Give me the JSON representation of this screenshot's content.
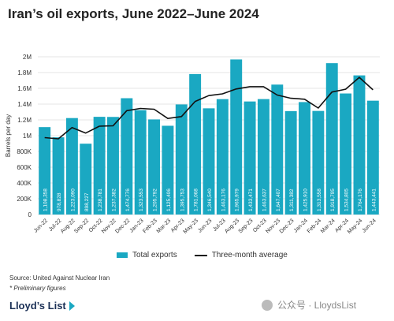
{
  "header": {
    "title": "Iran’s oil exports, June 2022–June 2024"
  },
  "legend": {
    "bars_label": "Total exports",
    "line_label": "Three-month average"
  },
  "footer": {
    "source": "Source: United Against Nuclear Iran",
    "footnote": "* Preliminary figures",
    "brand": "Lloyd’s List",
    "watermark": "公众号 · LloydsList"
  },
  "colors": {
    "bar": "#1aa8c2",
    "line": "#111111",
    "grid": "#dddddd",
    "bar_label": "#ffffff"
  },
  "chart_data": {
    "type": "bar",
    "title": "Iran’s oil exports, June 2022–June 2024",
    "xlabel": "",
    "ylabel": "Barrels per day",
    "ylim": [
      0,
      2000000
    ],
    "yticks": [
      0,
      200000,
      400000,
      600000,
      800000,
      1000000,
      1200000,
      1400000,
      1600000,
      1800000,
      2000000
    ],
    "ytick_labels": [
      "0",
      "200K",
      "400K",
      "600K",
      "800K",
      "1M",
      "1.2M",
      "1.4M",
      "1.6M",
      "1.8M",
      "2M"
    ],
    "grid": true,
    "legend_position": "bottom",
    "categories": [
      "Jun-22",
      "Jul-22",
      "Aug-22",
      "Sep-22",
      "Oct-22",
      "Nov-22",
      "Dec-22",
      "Jan-23",
      "Feb-23",
      "Mar-23",
      "Apr-23",
      "May-23",
      "Jun-23",
      "Jul-23",
      "Aug-23",
      "Sep-23",
      "Oct-23",
      "Nov-23",
      "Dec-23",
      "Jan-24",
      "Feb-24",
      "Mar-24",
      "Apr-24",
      "May-24",
      "Jun-24"
    ],
    "series": [
      {
        "name": "Total exports",
        "type": "bar",
        "values": [
          1108358,
          978828,
          1223090,
          898227,
          1238781,
          1237382,
          1474776,
          1323553,
          1205792,
          1125406,
          1395753,
          1781068,
          1346540,
          1463176,
          1965979,
          1433471,
          1463637,
          1647407,
          1311382,
          1425910,
          1313558,
          1918795,
          1534805,
          1764176,
          1443441
        ],
        "labels": [
          "1,108,358",
          "978,828",
          "1,223,090",
          "898,227",
          "1,238,781",
          "1,237,382",
          "1,474,776",
          "1,323,553",
          "1,205,792",
          "1,125,406",
          "1,395,753",
          "1,781,068",
          "1,346,540",
          "1,463,176",
          "1,965,979",
          "1,433,471",
          "1,463,637",
          "1,647,407",
          "1,311,382",
          "1,425,910",
          "1,313,558",
          "1,918,795",
          "1,534,805",
          "1,764,176",
          "1,443,441"
        ]
      },
      {
        "name": "Three-month average",
        "type": "line",
        "values": [
          975000,
          960000,
          1103000,
          1033000,
          1120000,
          1125000,
          1317000,
          1345000,
          1335000,
          1218000,
          1242000,
          1434000,
          1508000,
          1530000,
          1592000,
          1621000,
          1621000,
          1515000,
          1474000,
          1462000,
          1350000,
          1553000,
          1589000,
          1739000,
          1581000
        ]
      }
    ]
  }
}
